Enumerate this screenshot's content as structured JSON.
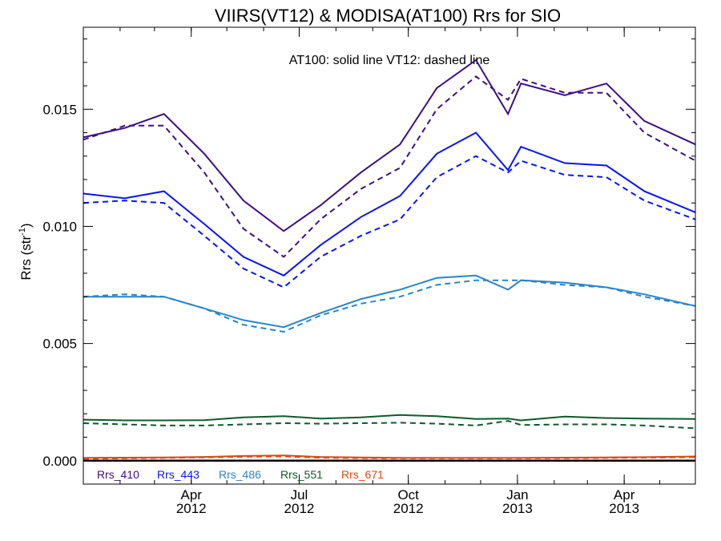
{
  "chart_data": {
    "type": "line",
    "title": "VIIRS(VT12) & MODISA(AT100)  Rrs for SIO",
    "ylabel": "Rrs (str",
    "ylabel_sup": "-1",
    "ylabel_close": ")",
    "annotation": "AT100: solid line   VT12: dashed line",
    "x_range": [
      "2012-01-01",
      "2013-05-31"
    ],
    "ylim": [
      -0.001,
      0.0185
    ],
    "x_ticks": [
      {
        "date": "2012-04-01",
        "month": "Apr",
        "year": "2012"
      },
      {
        "date": "2012-07-01",
        "month": "Jul",
        "year": "2012"
      },
      {
        "date": "2012-10-01",
        "month": "Oct",
        "year": "2012"
      },
      {
        "date": "2013-01-01",
        "month": "Jan",
        "year": "2013"
      },
      {
        "date": "2013-04-01",
        "month": "Apr",
        "year": "2013"
      }
    ],
    "y_ticks": [
      "0.000",
      "0.005",
      "0.010",
      "0.015"
    ],
    "y_tick_values": [
      0,
      0.005,
      0.01,
      0.015
    ],
    "x": [
      "2012-01-01",
      "2012-02-05",
      "2012-03-09",
      "2012-04-12",
      "2012-05-15",
      "2012-06-18",
      "2012-07-19",
      "2012-08-22",
      "2012-09-24",
      "2012-10-25",
      "2012-11-27",
      "2012-12-24",
      "2013-01-04",
      "2013-02-10",
      "2013-03-17",
      "2013-04-18",
      "2013-05-31"
    ],
    "series": [
      {
        "name": "Rrs_410",
        "color": "#3d0f82",
        "solid": [
          0.0138,
          0.0142,
          0.0148,
          0.0131,
          0.0111,
          0.0098,
          0.0109,
          0.0123,
          0.0135,
          0.0159,
          0.0171,
          0.0148,
          0.0161,
          0.0156,
          0.0161,
          0.0145,
          0.0135
        ],
        "dashed": [
          0.0137,
          0.0143,
          0.0143,
          0.0123,
          0.0099,
          0.0087,
          0.0103,
          0.0116,
          0.0125,
          0.015,
          0.0164,
          0.0154,
          0.0163,
          0.0157,
          0.0157,
          0.014,
          0.0128
        ]
      },
      {
        "name": "Rrs_443",
        "color": "#0a14f5",
        "solid": [
          0.0114,
          0.0112,
          0.0115,
          0.0101,
          0.0087,
          0.0079,
          0.0092,
          0.0104,
          0.0113,
          0.0131,
          0.014,
          0.0124,
          0.0134,
          0.0127,
          0.0126,
          0.0115,
          0.0106
        ],
        "dashed": [
          0.011,
          0.0111,
          0.011,
          0.0096,
          0.0082,
          0.0074,
          0.0087,
          0.0096,
          0.0103,
          0.0121,
          0.013,
          0.0123,
          0.0128,
          0.0122,
          0.0121,
          0.0111,
          0.0103
        ]
      },
      {
        "name": "Rrs_486",
        "color": "#2a84c7",
        "solid": [
          0.007,
          0.007,
          0.007,
          0.0065,
          0.006,
          0.0057,
          0.0063,
          0.0069,
          0.0073,
          0.0078,
          0.0079,
          0.0073,
          0.0077,
          0.0076,
          0.0074,
          0.0071,
          0.0066
        ],
        "dashed": [
          0.007,
          0.0071,
          0.007,
          0.0065,
          0.0058,
          0.0055,
          0.0062,
          0.0067,
          0.007,
          0.0075,
          0.0077,
          0.0077,
          0.0077,
          0.0075,
          0.0074,
          0.007,
          0.0066
        ]
      },
      {
        "name": "Rrs_551",
        "color": "#0e5a2a",
        "solid": [
          0.00175,
          0.00172,
          0.00172,
          0.00173,
          0.00185,
          0.0019,
          0.0018,
          0.00185,
          0.00195,
          0.0019,
          0.00178,
          0.0018,
          0.00172,
          0.00188,
          0.00182,
          0.0018,
          0.00178
        ],
        "dashed": [
          0.0016,
          0.00155,
          0.0015,
          0.0015,
          0.00155,
          0.0016,
          0.00158,
          0.0016,
          0.00162,
          0.00158,
          0.0015,
          0.0017,
          0.00152,
          0.00155,
          0.00155,
          0.0015,
          0.00138
        ]
      },
      {
        "name": "Rrs_671",
        "color": "#dd4a10",
        "solid": [
          0.00012,
          0.00013,
          0.00014,
          0.00016,
          0.0002,
          0.00022,
          0.00016,
          0.00014,
          0.00012,
          0.00012,
          0.00012,
          0.00012,
          0.00012,
          0.00013,
          0.00014,
          0.00015,
          0.00018
        ],
        "dashed": [
          8e-05,
          0.0001,
          0.00012,
          0.00014,
          0.00017,
          0.00018,
          0.00013,
          0.00011,
          0.0001,
          0.0001,
          0.0001,
          0.0001,
          0.0001,
          0.00011,
          0.00012,
          0.00013,
          0.00015
        ]
      }
    ],
    "legend_placement": "bottom-left, inside plot",
    "zero_line": true,
    "grid": false
  }
}
